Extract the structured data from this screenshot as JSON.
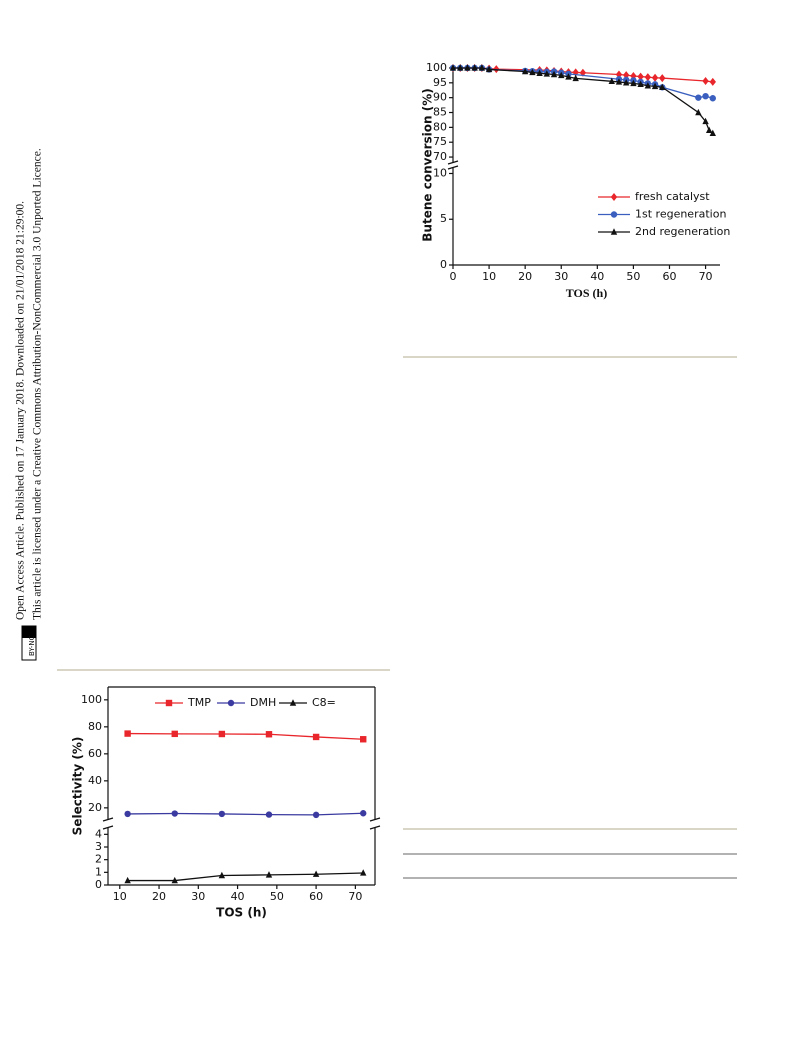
{
  "sidebar": {
    "line1": "Open Access Article. Published on 17 January 2018. Downloaded on 21/01/2018 21:29:00.",
    "line2": "This article is licensed under a Creative Commons Attribution-NonCommercial 3.0 Unported Licence.",
    "badge": "BY-NC"
  },
  "chart_data": [
    {
      "type": "line",
      "xlabel": "TOS (h)",
      "ylabel": "Butene conversion (%)",
      "xlim": [
        0,
        74
      ],
      "xticks": [
        0,
        10,
        20,
        30,
        40,
        50,
        60,
        70
      ],
      "ylim": [
        0,
        101
      ],
      "ybreak": [
        10.6,
        68
      ],
      "yticks": [
        0,
        5,
        10,
        70,
        75,
        80,
        85,
        90,
        95,
        100
      ],
      "legend": "lower right",
      "frame": false,
      "series": [
        {
          "name": "fresh catalyst",
          "color": "#e8262b",
          "marker": "diamond",
          "x": [
            0,
            2,
            4,
            6,
            8,
            10,
            12,
            24,
            26,
            28,
            30,
            32,
            34,
            36,
            46,
            48,
            50,
            52,
            54,
            56,
            58,
            70,
            72
          ],
          "values": [
            100,
            100,
            100,
            100,
            100,
            99.8,
            99.6,
            99.3,
            99.2,
            99,
            98.8,
            98.6,
            98.5,
            98.4,
            97.8,
            97.6,
            97.3,
            97.1,
            96.9,
            96.7,
            96.6,
            95.6,
            95.3
          ]
        },
        {
          "name": "1st regeneration",
          "color": "#3a5fbf",
          "marker": "circle",
          "x": [
            0,
            2,
            4,
            6,
            8,
            10,
            20,
            22,
            24,
            26,
            28,
            30,
            32,
            46,
            48,
            50,
            52,
            54,
            56,
            58,
            68,
            70,
            72
          ],
          "values": [
            100,
            100,
            100,
            100,
            100,
            99.5,
            99,
            98.9,
            98.8,
            98.7,
            98.8,
            98.4,
            98,
            96.2,
            96,
            95.8,
            95.3,
            94.8,
            94.5,
            93.5,
            90,
            90.5,
            89.8
          ]
        },
        {
          "name": "2nd regeneration",
          "color": "#111111",
          "marker": "triangle",
          "x": [
            0,
            2,
            4,
            6,
            8,
            10,
            20,
            22,
            24,
            26,
            28,
            30,
            32,
            34,
            44,
            46,
            48,
            50,
            52,
            54,
            56,
            58,
            68,
            70,
            71,
            72
          ],
          "values": [
            100,
            100,
            100,
            100,
            100,
            99.5,
            98.8,
            98.5,
            98.2,
            98,
            97.8,
            97.5,
            97,
            96.5,
            95.5,
            95.3,
            95,
            94.8,
            94.5,
            94,
            93.8,
            93.5,
            85,
            82,
            79,
            78
          ]
        }
      ]
    },
    {
      "type": "line",
      "xlabel": "TOS (h)",
      "ylabel": "Selectivity (%)",
      "xlim": [
        7,
        75
      ],
      "xticks": [
        10,
        20,
        30,
        40,
        50,
        60,
        70
      ],
      "ylim": [
        0,
        109.5
      ],
      "ybreak": [
        4.5,
        11
      ],
      "yticks": [
        0,
        1,
        2,
        3,
        4,
        20,
        40,
        60,
        80,
        100
      ],
      "legend": "upper center",
      "frame": true,
      "x": [
        12,
        24,
        36,
        48,
        60,
        72
      ],
      "series": [
        {
          "name": "TMP",
          "color": "#e8262b",
          "marker": "square",
          "values": [
            75,
            74.8,
            74.7,
            74.5,
            72.5,
            70.8
          ]
        },
        {
          "name": "DMH",
          "color": "#3a3aa0",
          "marker": "circle",
          "values": [
            15.5,
            15.8,
            15.5,
            15,
            14.8,
            16
          ]
        },
        {
          "name": "C8=",
          "color": "#111111",
          "marker": "triangle",
          "values": [
            0.35,
            0.35,
            0.75,
            0.8,
            0.85,
            0.95
          ]
        }
      ]
    }
  ]
}
